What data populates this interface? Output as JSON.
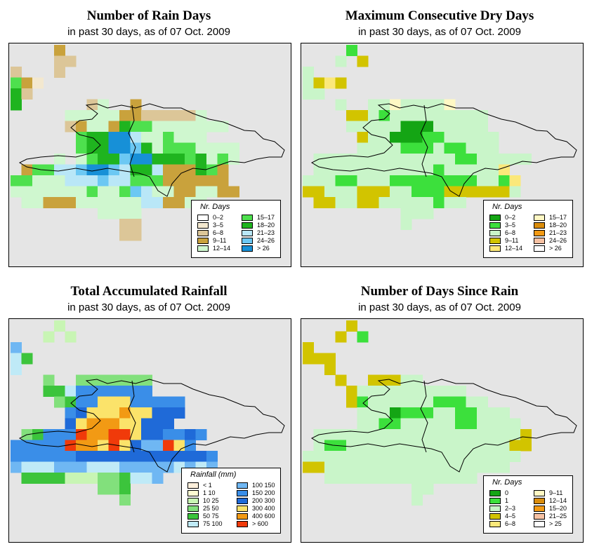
{
  "panels": [
    {
      "title": "Number of Rain Days",
      "subtitle": "in past 30 days, as of  07 Oct. 2009",
      "legend": {
        "title": "Nr. Days",
        "items": [
          {
            "label": "0–2",
            "color": "#ffffff"
          },
          {
            "label": "3–5",
            "color": "#f3e8cf"
          },
          {
            "label": "6–8",
            "color": "#dcc698"
          },
          {
            "label": "9–11",
            "color": "#c9a23c"
          },
          {
            "label": "12–14",
            "color": "#cff7cf"
          },
          {
            "label": "15–17",
            "color": "#4ee04e"
          },
          {
            "label": "18–20",
            "color": "#1fb41f"
          },
          {
            "label": "21–23",
            "color": "#b9e7f7"
          },
          {
            "label": "24–26",
            "color": "#6cc8f3"
          },
          {
            "label": "> 26",
            "color": "#1790d7"
          }
        ]
      }
    },
    {
      "title": "Maximum Consecutive Dry Days",
      "subtitle": "in past 30 days, as of  07 Oct. 2009",
      "legend": {
        "title": "Nr. Days",
        "items": [
          {
            "label": "0–2",
            "color": "#14a514"
          },
          {
            "label": "3–5",
            "color": "#3ce03c"
          },
          {
            "label": "6–8",
            "color": "#c9f5c9"
          },
          {
            "label": "9–11",
            "color": "#d2c400"
          },
          {
            "label": "12–14",
            "color": "#fbe87a"
          },
          {
            "label": "15–17",
            "color": "#fff8c4"
          },
          {
            "label": "18–20",
            "color": "#d98c0c"
          },
          {
            "label": "21–23",
            "color": "#f29a14"
          },
          {
            "label": "24–26",
            "color": "#f7c2a4"
          },
          {
            "label": "> 26",
            "color": "#ffffff"
          }
        ]
      }
    },
    {
      "title": "Total Accumulated Rainfall",
      "subtitle": "in past 30 days, as of  07 Oct. 2009",
      "legend": {
        "title": "Rainfall (mm)",
        "items": [
          {
            "label": "< 1",
            "color": "#fdf0dc"
          },
          {
            "label": "1   10",
            "color": "#fdfbd2"
          },
          {
            "label": "10   25",
            "color": "#c8f5b4"
          },
          {
            "label": "25   50",
            "color": "#82e07c"
          },
          {
            "label": "50   75",
            "color": "#3cc43c"
          },
          {
            "label": "75   100",
            "color": "#bfeaf7"
          },
          {
            "label": "100   150",
            "color": "#6fb7f3"
          },
          {
            "label": "150   200",
            "color": "#3a8ee8"
          },
          {
            "label": "200   300",
            "color": "#1f6ad8"
          },
          {
            "label": "300   400",
            "color": "#fbe36a"
          },
          {
            "label": "400   600",
            "color": "#f29a14"
          },
          {
            "label": "> 600",
            "color": "#f03a0a"
          }
        ]
      }
    },
    {
      "title": "Number of Days Since Rain",
      "subtitle": "in past 30 days, as of  07 Oct. 2009",
      "legend": {
        "title": "Nr. Days",
        "items": [
          {
            "label": "0",
            "color": "#14a514"
          },
          {
            "label": "1",
            "color": "#3ce03c"
          },
          {
            "label": "2–3",
            "color": "#c9f5c9"
          },
          {
            "label": "4–5",
            "color": "#d2c400"
          },
          {
            "label": "6–8",
            "color": "#fbe87a"
          },
          {
            "label": "9–11",
            "color": "#fff8c4"
          },
          {
            "label": "12–14",
            "color": "#d98c0c"
          },
          {
            "label": "15–20",
            "color": "#f29a14"
          },
          {
            "label": "21–25",
            "color": "#f7c2a4"
          },
          {
            "label": "> 25",
            "color": "#ffffff"
          }
        ]
      }
    }
  ]
}
